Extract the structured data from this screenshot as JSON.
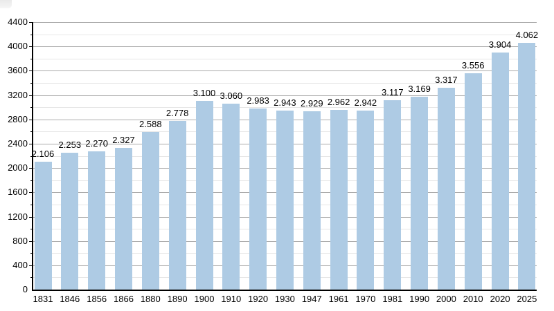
{
  "chart_data": {
    "type": "bar",
    "title": "",
    "xlabel": "",
    "ylabel": "",
    "categories": [
      "1831",
      "1846",
      "1856",
      "1866",
      "1880",
      "1890",
      "1900",
      "1910",
      "1920",
      "1930",
      "1947",
      "1961",
      "1970",
      "1981",
      "1990",
      "2000",
      "2010",
      "2020",
      "2025"
    ],
    "values": [
      2106,
      2253,
      2270,
      2327,
      2588,
      2778,
      3100,
      3060,
      2983,
      2943,
      2929,
      2962,
      2942,
      3117,
      3169,
      3317,
      3556,
      3904,
      4062
    ],
    "value_labels": [
      "2.106",
      "2.253",
      "2.270",
      "2.327",
      "2.588",
      "2.778",
      "3.100",
      "3.060",
      "2.983",
      "2.943",
      "2.929",
      "2.962",
      "2.942",
      "3.117",
      "3.169",
      "3.317",
      "3.556",
      "3.904",
      "4.062"
    ],
    "ylim": [
      0,
      4400
    ],
    "y_ticks": [
      0,
      400,
      800,
      1200,
      1600,
      2000,
      2400,
      2800,
      3200,
      3600,
      4000,
      4400
    ],
    "minor_grid_step": 200,
    "grid": "on",
    "legend": "none",
    "colors": {
      "bar": "#aecbe4",
      "major_grid": "#a9a9a9",
      "minor_grid": "#e6e6e6",
      "axis": "#000000",
      "text": "#000000"
    }
  }
}
